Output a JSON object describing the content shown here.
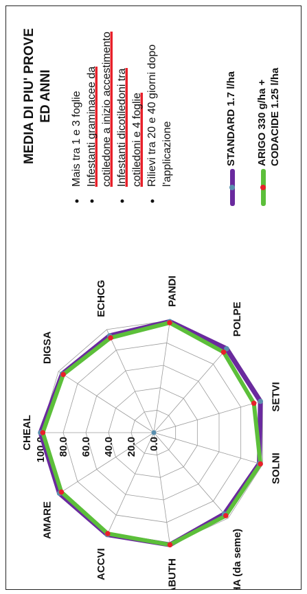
{
  "title": "MEDIA DI PIU' PROVE\nED ANNI",
  "notes": [
    {
      "text": "Mais tra 1 e 3 foglie",
      "highlight": false
    },
    {
      "text": "Infestanti graminacee da cotiledone a inizio accestimento",
      "highlight": true
    },
    {
      "text": "Infestanti dicotiledoni tra cotiledoni e 4 foglie",
      "highlight": true
    },
    {
      "text": "Rilievi tra 20 e 40 giorni dopo l'applicazione",
      "highlight": false
    }
  ],
  "chart_data": {
    "type": "radar",
    "categories": [
      "CHEAL",
      "DIGSA",
      "ECHCG",
      "PANDI",
      "POLPE",
      "SETVI",
      "SOLNI",
      "SORHA (da seme)",
      "ABUTH",
      "ACCVI",
      "AMARE"
    ],
    "ticks": [
      "0.0",
      "20.0",
      "40.0",
      "60.0",
      "80.0",
      "100.0"
    ],
    "rlim": [
      0,
      100
    ],
    "series": [
      {
        "name": "STANDARD 1.7 l/ha",
        "color": "#6a2a9e",
        "marker_color": "#5a8fae",
        "values": [
          100,
          96,
          94,
          99,
          98,
          98,
          97,
          95,
          100,
          99,
          99
        ]
      },
      {
        "name": "ARIGO 330 g/ha +\nCODACIDE 1.25 l/ha",
        "color": "#5cbf3a",
        "marker_color": "#e8202a",
        "values": [
          98,
          95,
          92,
          98,
          94,
          92,
          98,
          97,
          100,
          98,
          97
        ]
      }
    ],
    "legend_position": "right"
  }
}
